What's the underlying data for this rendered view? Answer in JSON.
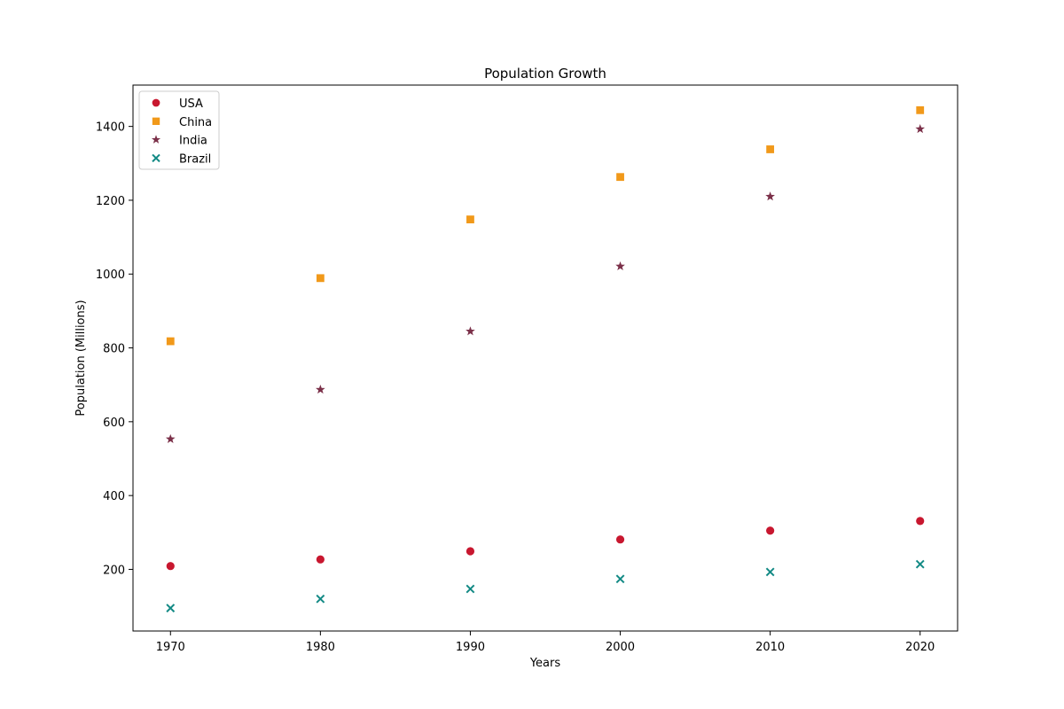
{
  "chart_data": {
    "type": "scatter",
    "title": "Population Growth",
    "xlabel": "Years",
    "ylabel": "Population (Millions)",
    "x": [
      1970,
      1980,
      1990,
      2000,
      2010,
      2020
    ],
    "xlim": [
      1967.5,
      2022.5
    ],
    "ylim": [
      33,
      1512
    ],
    "xticks": [
      "1970",
      "1980",
      "1990",
      "2000",
      "2010",
      "2020"
    ],
    "yticks": [
      "200",
      "400",
      "600",
      "800",
      "1000",
      "1200",
      "1400"
    ],
    "grid": false,
    "legend_position": "top-left",
    "series": [
      {
        "name": "USA",
        "marker": "circle",
        "color": "#c8172f",
        "values": [
          209,
          227,
          249,
          281,
          305,
          331
        ]
      },
      {
        "name": "China",
        "marker": "square",
        "color": "#f1991a",
        "values": [
          818,
          989,
          1148,
          1263,
          1338,
          1444
        ]
      },
      {
        "name": "India",
        "marker": "star",
        "color": "#7b3049",
        "values": [
          553,
          687,
          845,
          1021,
          1210,
          1393
        ]
      },
      {
        "name": "Brazil",
        "marker": "x",
        "color": "#138a85",
        "values": [
          95,
          120,
          147,
          174,
          193,
          214
        ]
      }
    ]
  }
}
